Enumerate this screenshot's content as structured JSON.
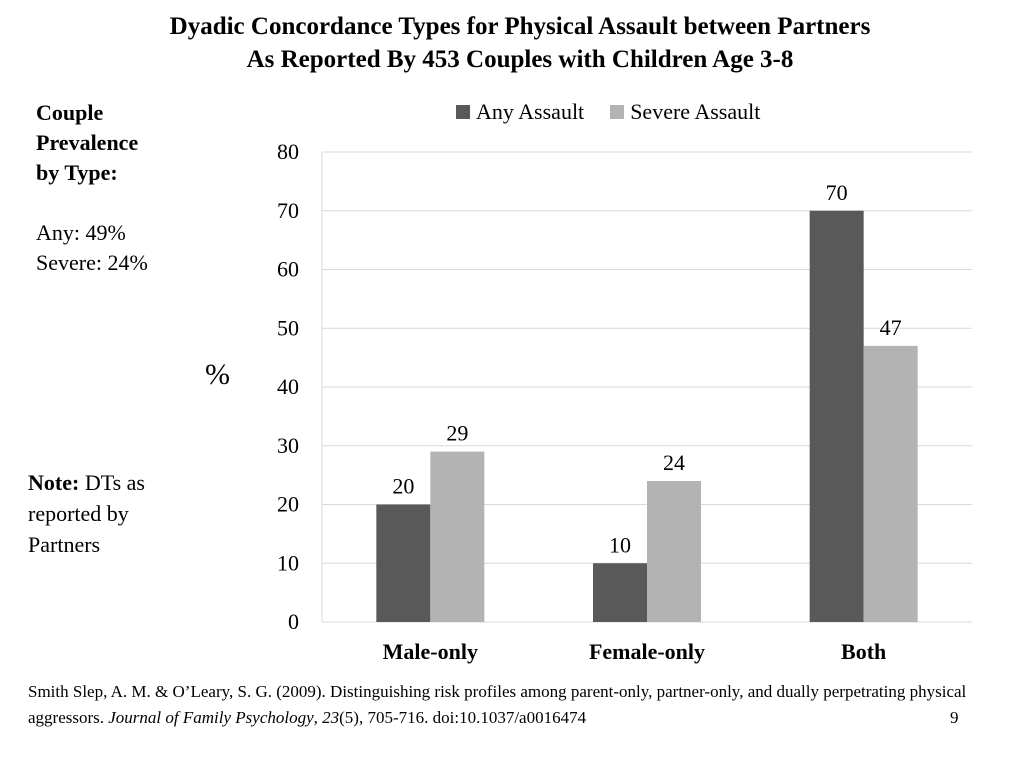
{
  "title": {
    "line1": "Dyadic Concordance Types for Physical Assault between Partners",
    "line2": "As Reported By 453 Couples with Children Age 3-8"
  },
  "side_box": {
    "heading_line1": "Couple",
    "heading_line2": "Prevalence",
    "heading_line3": "by Type:",
    "any": "Any: 49%",
    "severe": "Severe: 24%"
  },
  "note": {
    "label": "Note:",
    "text_line1": " DTs as",
    "text_line2": "reported by",
    "text_line3": "Partners"
  },
  "citation": {
    "part1": "Smith Slep, A. M. & O’Leary, S. G. (2009). Distinguishing risk profiles among parent-only, partner-only, and dually perpetrating physical aggressors. ",
    "journal": "Journal of Family Psychology",
    "sep": ", ",
    "volume": "23",
    "part2": "(5), 705-716. doi:10.1037/a0016474"
  },
  "page_number": "9",
  "colors": {
    "any": "#595959",
    "severe": "#b3b3b3",
    "grid": "#d9d9d9",
    "axis": "#d9d9d9"
  },
  "chart_data": {
    "type": "bar",
    "categories": [
      "Male-only",
      "Female-only",
      "Both"
    ],
    "series": [
      {
        "name": "Any Assault",
        "values": [
          20,
          10,
          70
        ]
      },
      {
        "name": "Severe Assault",
        "values": [
          29,
          24,
          47
        ]
      }
    ],
    "xlabel": "",
    "ylabel": "%",
    "ylim": [
      0,
      80
    ],
    "yticks": [
      0,
      10,
      20,
      30,
      40,
      50,
      60,
      70,
      80
    ],
    "grid": true,
    "legend": "top",
    "data_labels": true
  }
}
